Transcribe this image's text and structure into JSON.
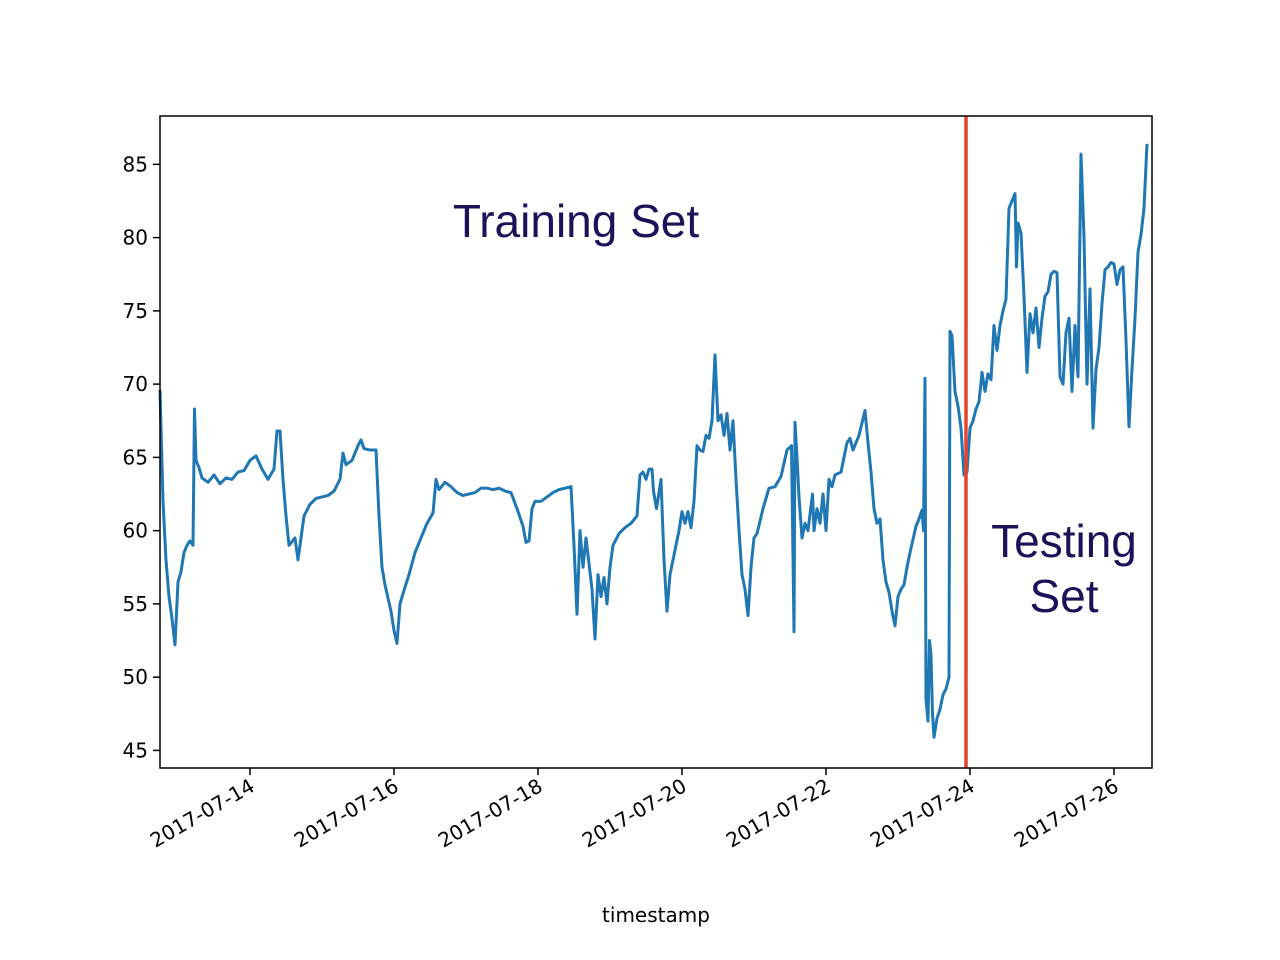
{
  "chart_data": {
    "type": "line",
    "xlabel": "timestamp",
    "xlim": [
      "2017-07-12 18:00",
      "2017-07-26 12:40"
    ],
    "xticks": [
      "2017-07-14",
      "2017-07-16",
      "2017-07-18",
      "2017-07-20",
      "2017-07-22",
      "2017-07-24",
      "2017-07-26"
    ],
    "ylim": [
      43.8,
      88.3
    ],
    "yticks": [
      45,
      50,
      55,
      60,
      65,
      70,
      75,
      80,
      85
    ],
    "vline": {
      "x": "2017-07-23 22:40",
      "color": "#e5432b"
    },
    "annotations": [
      {
        "text": "Training Set",
        "color": "#1b1259"
      },
      {
        "text": "Testing\nSet",
        "color": "#1b1259"
      }
    ],
    "series": [
      {
        "color": "#1f77b4",
        "x": [
          "2017-07-12 18:00",
          "2017-07-12 19:00",
          "2017-07-12 20:00",
          "2017-07-12 21:00",
          "2017-07-12 22:00",
          "2017-07-12 23:00",
          "2017-07-13 00:00",
          "2017-07-13 01:00",
          "2017-07-13 02:00",
          "2017-07-13 03:00",
          "2017-07-13 04:00",
          "2017-07-13 05:00",
          "2017-07-13 05:30",
          "2017-07-13 06:00",
          "2017-07-13 07:00",
          "2017-07-13 08:00",
          "2017-07-13 10:00",
          "2017-07-13 12:00",
          "2017-07-13 14:00",
          "2017-07-13 16:00",
          "2017-07-13 18:00",
          "2017-07-13 20:00",
          "2017-07-13 22:00",
          "2017-07-14 00:00",
          "2017-07-14 02:00",
          "2017-07-14 04:00",
          "2017-07-14 06:00",
          "2017-07-14 08:00",
          "2017-07-14 09:00",
          "2017-07-14 10:00",
          "2017-07-14 11:00",
          "2017-07-14 12:00",
          "2017-07-14 13:00",
          "2017-07-14 15:00",
          "2017-07-14 16:00",
          "2017-07-14 18:00",
          "2017-07-14 20:00",
          "2017-07-14 22:00",
          "2017-07-15 00:00",
          "2017-07-15 02:00",
          "2017-07-15 04:00",
          "2017-07-15 06:00",
          "2017-07-15 07:00",
          "2017-07-15 08:00",
          "2017-07-15 10:00",
          "2017-07-15 12:00",
          "2017-07-15 13:00",
          "2017-07-15 14:00",
          "2017-07-15 16:00",
          "2017-07-15 18:00",
          "2017-07-15 19:00",
          "2017-07-15 20:00",
          "2017-07-15 21:00",
          "2017-07-15 23:00",
          "2017-07-16 00:00",
          "2017-07-16 01:00",
          "2017-07-16 02:00",
          "2017-07-16 03:00",
          "2017-07-16 05:00",
          "2017-07-16 07:00",
          "2017-07-16 09:00",
          "2017-07-16 11:00",
          "2017-07-16 13:00",
          "2017-07-16 14:00",
          "2017-07-16 15:00",
          "2017-07-16 17:00",
          "2017-07-16 19:00",
          "2017-07-16 21:00",
          "2017-07-16 23:00",
          "2017-07-17 01:00",
          "2017-07-17 03:00",
          "2017-07-17 05:00",
          "2017-07-17 07:00",
          "2017-07-17 09:00",
          "2017-07-17 11:00",
          "2017-07-17 13:00",
          "2017-07-17 15:00",
          "2017-07-17 17:00",
          "2017-07-17 19:00",
          "2017-07-17 20:00",
          "2017-07-17 21:00",
          "2017-07-17 22:00",
          "2017-07-17 23:00",
          "2017-07-18 01:00",
          "2017-07-18 03:00",
          "2017-07-18 05:00",
          "2017-07-18 07:00",
          "2017-07-18 09:00",
          "2017-07-18 11:00",
          "2017-07-18 12:00",
          "2017-07-18 13:00",
          "2017-07-18 14:00",
          "2017-07-18 15:00",
          "2017-07-18 16:00",
          "2017-07-18 18:00",
          "2017-07-18 19:00",
          "2017-07-18 20:00",
          "2017-07-18 21:00",
          "2017-07-18 22:00",
          "2017-07-18 23:00",
          "2017-07-19 00:00",
          "2017-07-19 01:00",
          "2017-07-19 03:00",
          "2017-07-19 05:00",
          "2017-07-19 07:00",
          "2017-07-19 09:00",
          "2017-07-19 10:00",
          "2017-07-19 11:00",
          "2017-07-19 12:00",
          "2017-07-19 13:00",
          "2017-07-19 14:00",
          "2017-07-19 14:30",
          "2017-07-19 15:30",
          "2017-07-19 17:00",
          "2017-07-19 18:00",
          "2017-07-19 19:00",
          "2017-07-19 20:00",
          "2017-07-19 21:00",
          "2017-07-19 22:00",
          "2017-07-19 23:00",
          "2017-07-20 00:00",
          "2017-07-20 01:00",
          "2017-07-20 02:00",
          "2017-07-20 03:00",
          "2017-07-20 04:00",
          "2017-07-20 05:00",
          "2017-07-20 06:00",
          "2017-07-20 07:00",
          "2017-07-20 08:00",
          "2017-07-20 09:00",
          "2017-07-20 10:00",
          "2017-07-20 11:00",
          "2017-07-20 12:00",
          "2017-07-20 13:00",
          "2017-07-20 14:00",
          "2017-07-20 15:00",
          "2017-07-20 16:00",
          "2017-07-20 17:00",
          "2017-07-20 18:00",
          "2017-07-20 19:00",
          "2017-07-20 20:00",
          "2017-07-20 21:00",
          "2017-07-20 22:00",
          "2017-07-20 23:00",
          "2017-07-21 00:00",
          "2017-07-21 01:00",
          "2017-07-21 03:00",
          "2017-07-21 05:00",
          "2017-07-21 07:00",
          "2017-07-21 09:00",
          "2017-07-21 11:00",
          "2017-07-21 12:30",
          "2017-07-21 13:20",
          "2017-07-21 13:40",
          "2017-07-21 14:20",
          "2017-07-21 15:00",
          "2017-07-21 16:00",
          "2017-07-21 17:00",
          "2017-07-21 18:00",
          "2017-07-21 19:30",
          "2017-07-21 20:00",
          "2017-07-21 21:00",
          "2017-07-21 22:00",
          "2017-07-21 23:00",
          "2017-07-22 00:00",
          "2017-07-22 01:00",
          "2017-07-22 02:00",
          "2017-07-22 03:00",
          "2017-07-22 05:00",
          "2017-07-22 07:00",
          "2017-07-22 08:00",
          "2017-07-22 09:00",
          "2017-07-22 11:00",
          "2017-07-22 13:00",
          "2017-07-22 14:00",
          "2017-07-22 15:00",
          "2017-07-22 16:00",
          "2017-07-22 17:00",
          "2017-07-22 18:00",
          "2017-07-22 19:00",
          "2017-07-22 20:00",
          "2017-07-22 21:00",
          "2017-07-22 22:00",
          "2017-07-22 23:00",
          "2017-07-23 00:00",
          "2017-07-23 01:00",
          "2017-07-23 02:00",
          "2017-07-23 03:00",
          "2017-07-23 04:00",
          "2017-07-23 06:00",
          "2017-07-23 07:00",
          "2017-07-23 08:00",
          "2017-07-23 08:30",
          "2017-07-23 09:00",
          "2017-07-23 09:20",
          "2017-07-23 10:00",
          "2017-07-23 10:30",
          "2017-07-23 11:00",
          "2017-07-23 11:30",
          "2017-07-23 12:00",
          "2017-07-23 13:00",
          "2017-07-23 14:00",
          "2017-07-23 15:00",
          "2017-07-23 16:00",
          "2017-07-23 17:00",
          "2017-07-23 17:20",
          "2017-07-23 18:00",
          "2017-07-23 19:00",
          "2017-07-23 20:00",
          "2017-07-23 21:00",
          "2017-07-23 22:00",
          "2017-07-23 23:00",
          "2017-07-24 00:00",
          "2017-07-24 01:00",
          "2017-07-24 02:00",
          "2017-07-24 03:00",
          "2017-07-24 04:00",
          "2017-07-24 05:00",
          "2017-07-24 06:00",
          "2017-07-24 07:00",
          "2017-07-24 08:00",
          "2017-07-24 09:00",
          "2017-07-24 10:00",
          "2017-07-24 11:00",
          "2017-07-24 12:00",
          "2017-07-24 13:00",
          "2017-07-24 14:00",
          "2017-07-24 15:00",
          "2017-07-24 15:30",
          "2017-07-24 16:00",
          "2017-07-24 17:00",
          "2017-07-24 18:00",
          "2017-07-24 19:00",
          "2017-07-24 20:00",
          "2017-07-24 21:00",
          "2017-07-24 22:00",
          "2017-07-24 23:00",
          "2017-07-25 00:00",
          "2017-07-25 01:00",
          "2017-07-25 02:00",
          "2017-07-25 03:00",
          "2017-07-25 04:00",
          "2017-07-25 05:00",
          "2017-07-25 06:00",
          "2017-07-25 07:00",
          "2017-07-25 08:00",
          "2017-07-25 09:00",
          "2017-07-25 10:00",
          "2017-07-25 11:00",
          "2017-07-25 12:00",
          "2017-07-25 13:00",
          "2017-07-25 14:00",
          "2017-07-25 15:00",
          "2017-07-25 16:00",
          "2017-07-25 17:00",
          "2017-07-25 18:00",
          "2017-07-25 19:00",
          "2017-07-25 20:00",
          "2017-07-25 21:00",
          "2017-07-25 22:00",
          "2017-07-25 23:00",
          "2017-07-26 00:00",
          "2017-07-26 01:00",
          "2017-07-26 02:00",
          "2017-07-26 03:00",
          "2017-07-26 04:00",
          "2017-07-26 05:00",
          "2017-07-26 06:00",
          "2017-07-26 07:00",
          "2017-07-26 08:00",
          "2017-07-26 09:00",
          "2017-07-26 10:00",
          "2017-07-26 11:00"
        ],
        "values": [
          69.6,
          62,
          58,
          55.5,
          54,
          52.2,
          56.5,
          57.2,
          58.5,
          59,
          59.3,
          59,
          68.3,
          64.8,
          64.3,
          63.6,
          63.3,
          63.8,
          63.2,
          63.6,
          63.5,
          64,
          64.1,
          64.8,
          65.1,
          64.2,
          63.5,
          64.2,
          66.8,
          66.8,
          63.5,
          61,
          59,
          59.5,
          58,
          61,
          61.8,
          62.2,
          62.3,
          62.4,
          62.7,
          63.5,
          65.3,
          64.5,
          64.8,
          65.8,
          66.2,
          65.6,
          65.5,
          65.5,
          61,
          57.5,
          56.3,
          54.5,
          53.2,
          52.3,
          55,
          55.7,
          57,
          58.5,
          59.5,
          60.5,
          61.2,
          63.5,
          62.8,
          63.3,
          63,
          62.6,
          62.4,
          62.5,
          62.6,
          62.9,
          62.9,
          62.8,
          62.9,
          62.7,
          62.6,
          61.5,
          60.3,
          59.2,
          59.3,
          61.5,
          62,
          62,
          62.3,
          62.6,
          62.8,
          62.9,
          63,
          59,
          54.3,
          60,
          57.5,
          59.5,
          56,
          52.6,
          57,
          55.5,
          56.8,
          55,
          57.5,
          59,
          59.8,
          60.2,
          60.5,
          61,
          63.8,
          64,
          63.5,
          64.2,
          64.2,
          62.7,
          61.5,
          63.5,
          58,
          54.5,
          57,
          58,
          59,
          60,
          61.3,
          60.5,
          61.3,
          60.2,
          62,
          65.8,
          65.5,
          65.4,
          66.5,
          66.3,
          67.5,
          72,
          67.5,
          67.9,
          66.5,
          68,
          65.5,
          67.5,
          63.5,
          60,
          57,
          56,
          54.2,
          57.5,
          59.5,
          59.8,
          61.5,
          62.9,
          63,
          63.7,
          65.5,
          65.8,
          53.1,
          67.4,
          65,
          62.3,
          59.5,
          60.5,
          60,
          62.5,
          60,
          61.5,
          60.5,
          62.5,
          60,
          63.5,
          63,
          63.8,
          64,
          66,
          66.3,
          65.5,
          66.5,
          68.2,
          66,
          64,
          61.5,
          60.5,
          60.8,
          58,
          56.5,
          55.8,
          54.5,
          53.5,
          55.5,
          56,
          56.3,
          57.5,
          58.5,
          60.3,
          60.8,
          61.4,
          60,
          70.4,
          48.5,
          47,
          52.5,
          51.5,
          47.5,
          45.9,
          47.2,
          47.8,
          48.8,
          49.2,
          50,
          73.6,
          73.3,
          69.5,
          68.5,
          67,
          63.8,
          64,
          67,
          67.5,
          68.3,
          68.8,
          70.8,
          69.5,
          70.7,
          70.3,
          74,
          72.3,
          74,
          75,
          75.8,
          82,
          82.5,
          83,
          78,
          81,
          80.3,
          76,
          70.8,
          74.8,
          73.5,
          75.2,
          72.5,
          74.5,
          76,
          76.3,
          77.5,
          77.7,
          77.6,
          70.5,
          70,
          73.5,
          74.5,
          69.5,
          74,
          70.5,
          85.7,
          80,
          70,
          76.5,
          67,
          71,
          72.5,
          75.5,
          77.8,
          78,
          78.3,
          78.2,
          76.8,
          77.8,
          78,
          73,
          67.1,
          71,
          74.5,
          79,
          80.2,
          82,
          86.4
        ]
      }
    ]
  }
}
